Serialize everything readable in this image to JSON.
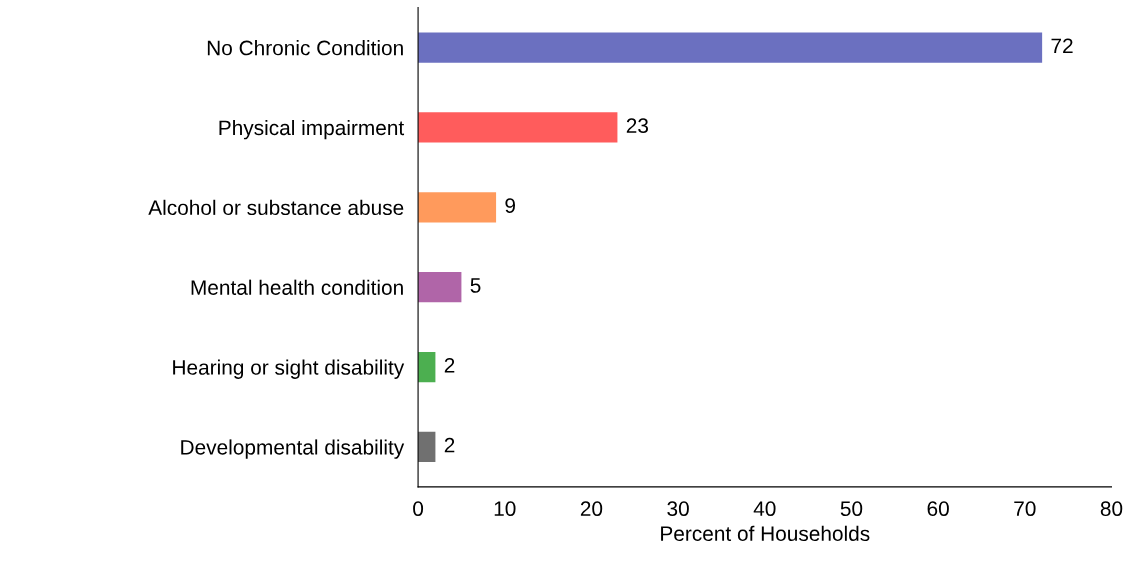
{
  "chart_data": {
    "type": "bar",
    "orientation": "horizontal",
    "xlabel": "Percent of Households",
    "categories": [
      "No Chronic Condition",
      "Physical impairment",
      "Alcohol or substance abuse",
      "Mental health condition",
      "Hearing or sight disability",
      "Developmental disability"
    ],
    "values": [
      72,
      23,
      9,
      5,
      2,
      2
    ],
    "colors": [
      "#6b70c0",
      "#ff5c5c",
      "#ff9a5c",
      "#b065a8",
      "#4caf50",
      "#707070"
    ],
    "xlim": [
      0,
      80
    ],
    "xticks": [
      0,
      10,
      20,
      30,
      40,
      50,
      60,
      70,
      80
    ],
    "data_labels": true,
    "grid": false,
    "legend": false
  }
}
